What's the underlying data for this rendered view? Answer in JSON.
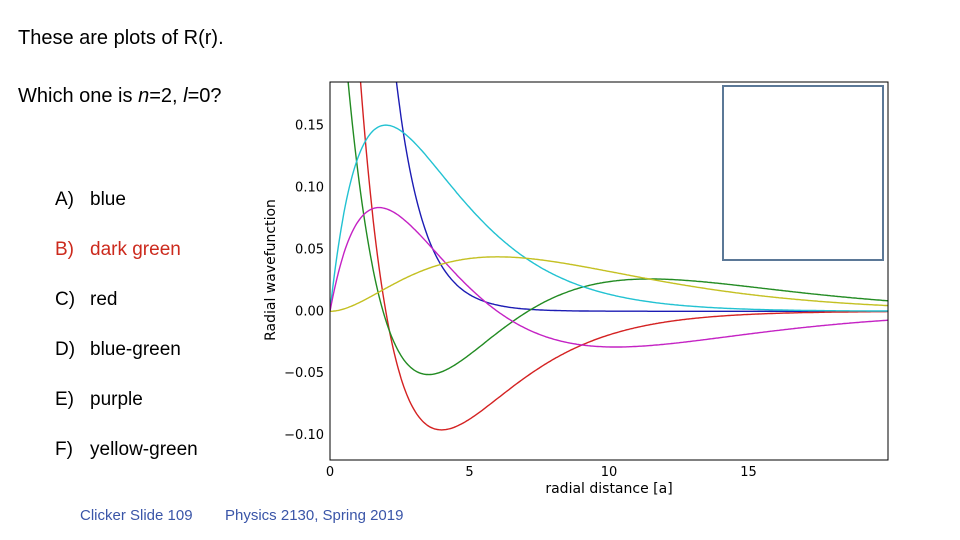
{
  "slide": {
    "title": "These are plots of R(r).",
    "question": {
      "prefix": "Which one is ",
      "n_label": "n",
      "n_eq": "=2, ",
      "l_label": "l",
      "l_eq": "=0?"
    },
    "options": [
      {
        "letter": "A)",
        "text": "blue",
        "color": "#000000"
      },
      {
        "letter": "B)",
        "text": "dark green",
        "color": "#cc2a1d"
      },
      {
        "letter": "C)",
        "text": "red",
        "color": "#000000"
      },
      {
        "letter": "D)",
        "text": "blue-green",
        "color": "#000000"
      },
      {
        "letter": "E)",
        "text": "purple",
        "color": "#000000"
      },
      {
        "letter": "F)",
        "text": "yellow-green",
        "color": "#000000"
      }
    ],
    "footer_left": "Clicker Slide 109",
    "footer_right": "Physics 2130, Spring 2019"
  },
  "chart_data": {
    "type": "line",
    "title": "",
    "xlabel": "radial distance [a]",
    "ylabel": "Radial wavefunction",
    "xlim": [
      0,
      20
    ],
    "ylim": [
      -0.12,
      0.185
    ],
    "xticks": [
      0,
      5,
      10,
      15
    ],
    "xtick_labels": [
      "0",
      "5",
      "10",
      "15"
    ],
    "yticks": [
      0.15,
      0.1,
      0.05,
      0.0,
      -0.05,
      -0.1
    ],
    "ytick_labels": [
      "0.15",
      "0.10",
      "0.05",
      "0.00",
      "−0.05",
      "−0.10"
    ],
    "grid": false,
    "legend": "top-right (empty box)",
    "series": [
      {
        "name": "blue",
        "color": "#1c1cb4",
        "kind": "R10"
      },
      {
        "name": "red",
        "color": "#d42222",
        "kind": "R20"
      },
      {
        "name": "dark green",
        "color": "#228b22",
        "kind": "R30"
      },
      {
        "name": "blue-green",
        "color": "#22c2d2",
        "kind": "R21"
      },
      {
        "name": "purple",
        "color": "#c422c4",
        "kind": "R31"
      },
      {
        "name": "yellow-green",
        "color": "#c4c022",
        "kind": "R32"
      }
    ]
  }
}
